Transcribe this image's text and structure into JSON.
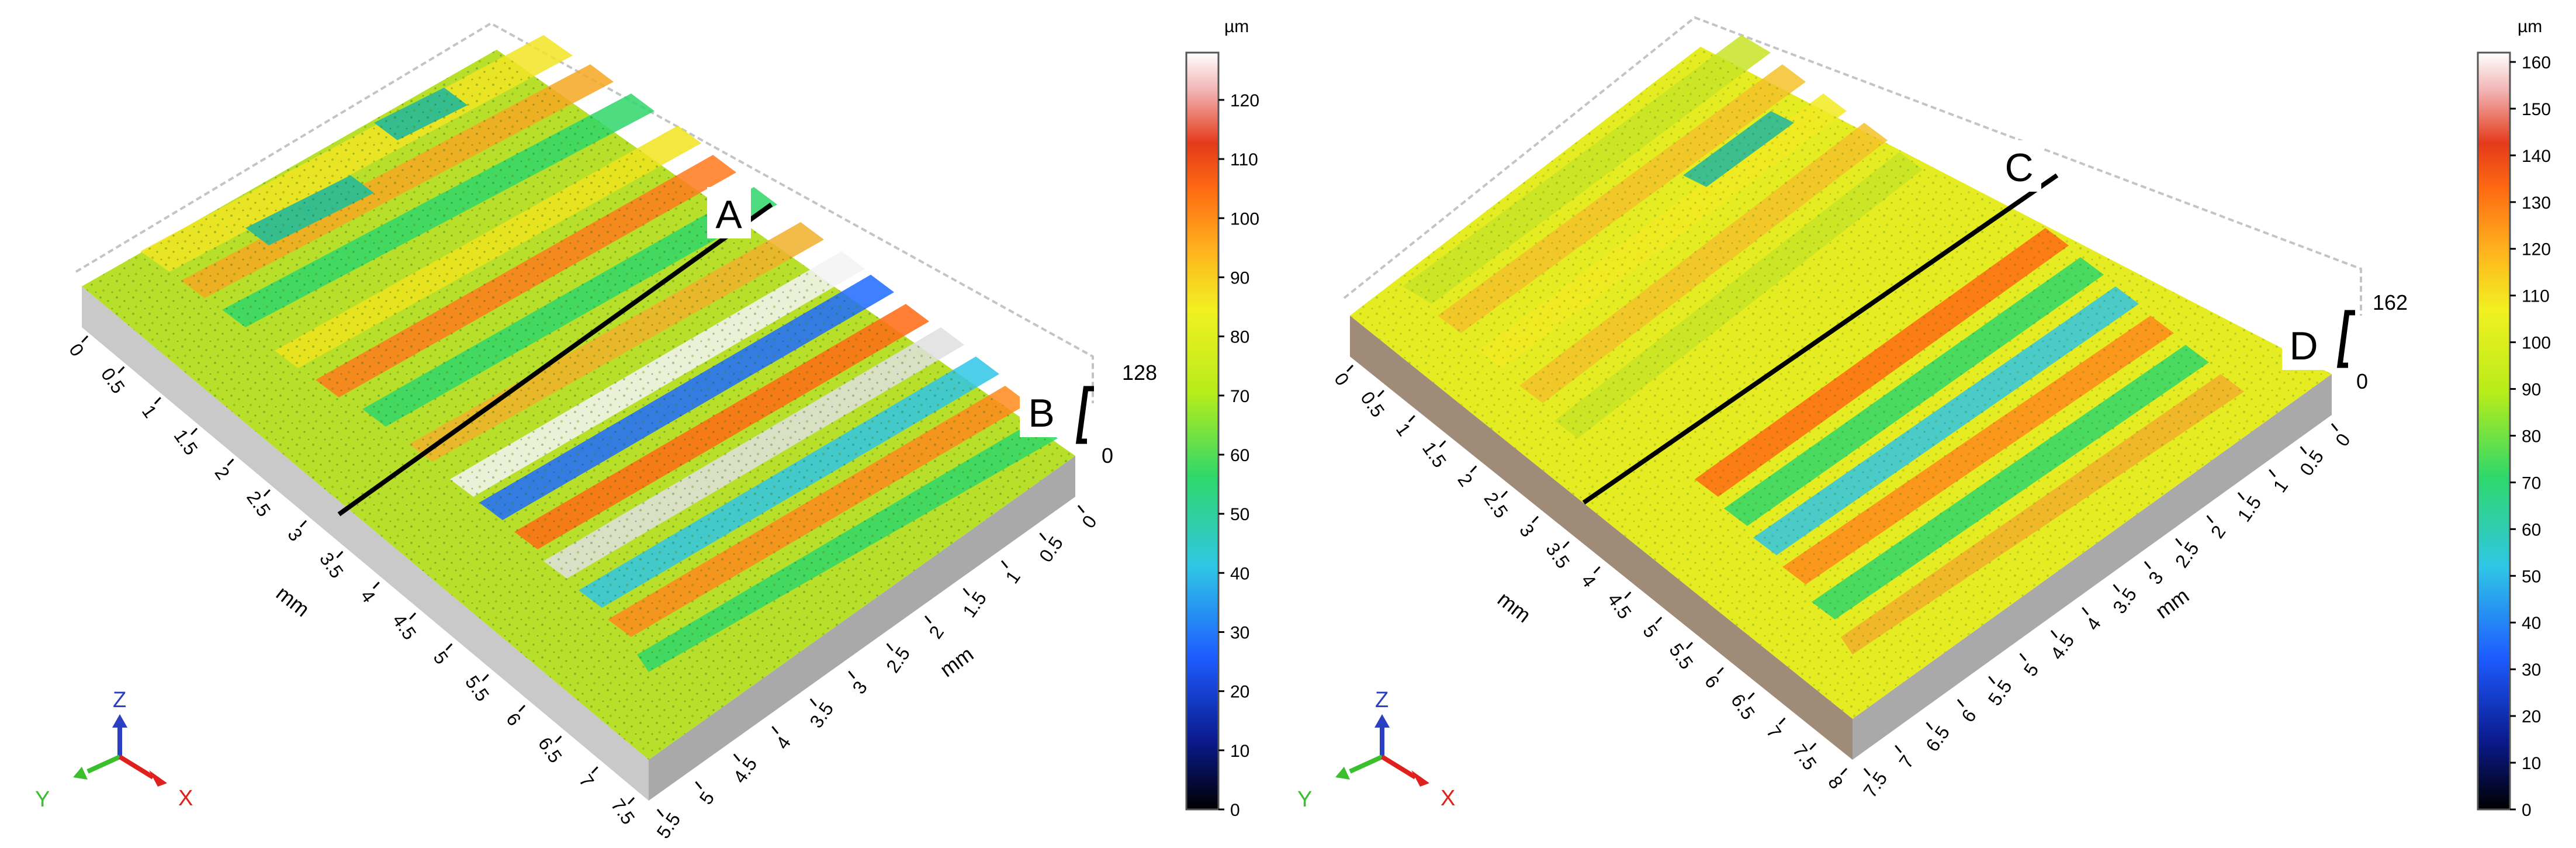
{
  "panels": [
    {
      "id": "left",
      "scale_unit": "µm",
      "scale_max_value": "128",
      "scale_min_value": "0",
      "colorbar_ticks": [
        "120",
        "110",
        "100",
        "90",
        "80",
        "70",
        "60",
        "50",
        "40",
        "30",
        "20",
        "10",
        "0"
      ],
      "colorbar_max": 128,
      "x_ticks": [
        "0",
        "0.5",
        "1",
        "1.5",
        "2",
        "2.5",
        "3",
        "3.5",
        "4",
        "4.5",
        "5",
        "5.5",
        "6",
        "6.5",
        "7",
        "7.5"
      ],
      "x_unit": "mm",
      "y_ticks": [
        "5.5",
        "5",
        "4.5",
        "4",
        "3.5",
        "3",
        "2.5",
        "2",
        "1.5",
        "1",
        "0.5",
        "0"
      ],
      "y_unit": "mm",
      "line_labels": [
        "A",
        "B"
      ],
      "axis_labels": [
        "Z",
        "Y",
        "X"
      ]
    },
    {
      "id": "right",
      "scale_unit": "µm",
      "scale_max_value": "162",
      "scale_min_value": "0",
      "colorbar_ticks": [
        "160",
        "150",
        "140",
        "130",
        "120",
        "110",
        "100",
        "90",
        "80",
        "70",
        "60",
        "50",
        "40",
        "30",
        "20",
        "10",
        "0"
      ],
      "colorbar_max": 162,
      "x_ticks": [
        "0",
        "0.5",
        "1",
        "1.5",
        "2",
        "2.5",
        "3",
        "3.5",
        "4",
        "4.5",
        "5",
        "5.5",
        "6",
        "6.5",
        "7",
        "7.5",
        "8"
      ],
      "x_unit": "mm",
      "y_ticks": [
        "7.5",
        "7",
        "6.5",
        "6",
        "5.5",
        "5",
        "4.5",
        "4",
        "3.5",
        "3",
        "2.5",
        "2",
        "1.5",
        "1",
        "0.5",
        "0"
      ],
      "y_unit": "mm",
      "line_labels": [
        "C",
        "D"
      ],
      "axis_labels": [
        "Z",
        "Y",
        "X"
      ]
    }
  ],
  "colors": {
    "axis_x": "#e0201c",
    "axis_y": "#3bbf2e",
    "axis_z": "#2a3fc2",
    "box_outline": "#bdbdbd",
    "side_wall": "#d0d0d0",
    "section_line": "#000000"
  },
  "colormap": [
    "#000000",
    "#0a1a8c",
    "#1d5bff",
    "#2fc6e6",
    "#2fd86a",
    "#b7ec1a",
    "#f2f020",
    "#ffb21e",
    "#ff6a12",
    "#e43a1a",
    "#f2b4b4",
    "#ffffff"
  ]
}
